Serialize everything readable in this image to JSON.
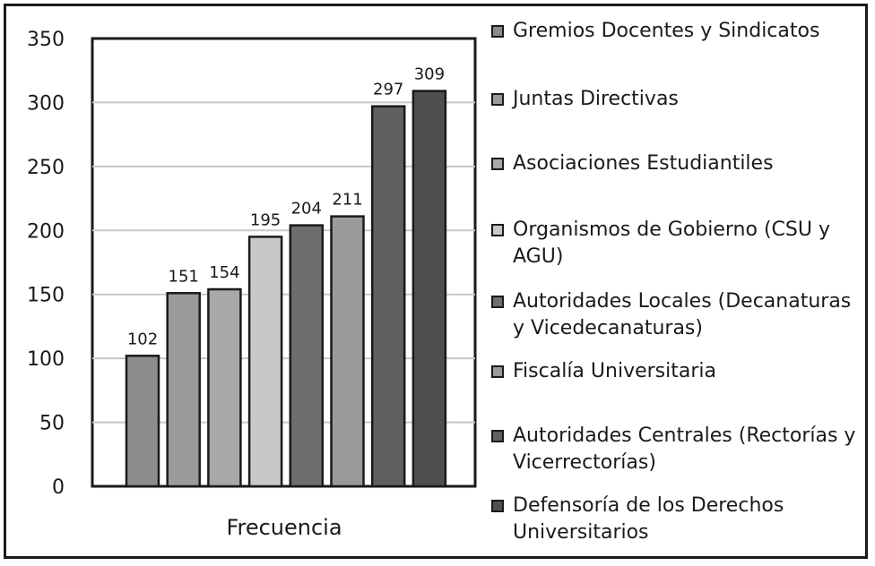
{
  "chart_data": {
    "type": "bar",
    "categories": [
      "Frecuencia"
    ],
    "yticks": [
      "0",
      "50",
      "100",
      "150",
      "200",
      "250",
      "300",
      "350"
    ],
    "ylim": [
      0,
      350
    ],
    "grid": true,
    "legend_position": "right",
    "series": [
      {
        "name": "Gremios Docentes y Sindicatos",
        "value": 102,
        "label": "102",
        "color": "#8c8c8c"
      },
      {
        "name": "Juntas Directivas",
        "value": 151,
        "label": "151",
        "color": "#9b9b9b"
      },
      {
        "name": "Asociaciones Estudiantiles",
        "value": 154,
        "label": "154",
        "color": "#a8a8a8"
      },
      {
        "name": "Organismos de Gobierno (CSU y AGU)",
        "value": 195,
        "label": "195",
        "color": "#c8c8c8"
      },
      {
        "name": "Autoridades Locales (Decanaturas y Vicedecanaturas)",
        "value": 204,
        "label": "204",
        "color": "#6e6e6e"
      },
      {
        "name": "Fiscalía Universitaria",
        "value": 211,
        "label": "211",
        "color": "#9a9a9a"
      },
      {
        "name": "Autoridades Centrales (Rectorías y Vicerrectorías)",
        "value": 297,
        "label": "297",
        "color": "#5f5f5f"
      },
      {
        "name": "Defensoría  de los Derechos Universitarios",
        "value": 309,
        "label": "309",
        "color": "#4f4f4f"
      }
    ]
  }
}
